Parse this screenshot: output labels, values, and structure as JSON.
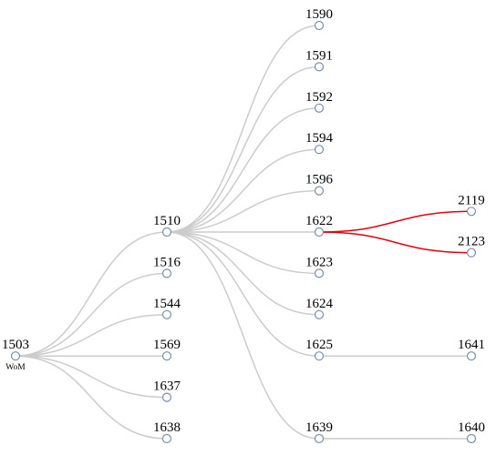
{
  "tree": {
    "root": "1503",
    "nodes": [
      {
        "id": "1503",
        "label": "1503",
        "sublabel": "WoM",
        "parent": null
      },
      {
        "id": "1510",
        "label": "1510",
        "parent": "1503"
      },
      {
        "id": "1516",
        "label": "1516",
        "parent": "1503"
      },
      {
        "id": "1544",
        "label": "1544",
        "parent": "1503"
      },
      {
        "id": "1569",
        "label": "1569",
        "parent": "1503"
      },
      {
        "id": "1637",
        "label": "1637",
        "parent": "1503"
      },
      {
        "id": "1638",
        "label": "1638",
        "parent": "1503"
      },
      {
        "id": "1590",
        "label": "1590",
        "parent": "1510"
      },
      {
        "id": "1591",
        "label": "1591",
        "parent": "1510"
      },
      {
        "id": "1592",
        "label": "1592",
        "parent": "1510"
      },
      {
        "id": "1594",
        "label": "1594",
        "parent": "1510"
      },
      {
        "id": "1596",
        "label": "1596",
        "parent": "1510"
      },
      {
        "id": "1622",
        "label": "1622",
        "parent": "1510"
      },
      {
        "id": "1623",
        "label": "1623",
        "parent": "1510"
      },
      {
        "id": "1624",
        "label": "1624",
        "parent": "1510"
      },
      {
        "id": "1625",
        "label": "1625",
        "parent": "1510"
      },
      {
        "id": "1639",
        "label": "1639",
        "parent": "1510"
      },
      {
        "id": "2119",
        "label": "2119",
        "parent": "1622"
      },
      {
        "id": "2123",
        "label": "2123",
        "parent": "1622"
      },
      {
        "id": "1641",
        "label": "1641",
        "parent": "1625"
      },
      {
        "id": "1640",
        "label": "1640",
        "parent": "1639"
      }
    ],
    "highlighted_links": [
      [
        "1622",
        "2119"
      ],
      [
        "1622",
        "2123"
      ]
    ],
    "colors": {
      "link": "#cccccc",
      "highlight": "#e8000b",
      "node_stroke": "#7a8fa8",
      "node_fill": "#ffffff"
    }
  }
}
